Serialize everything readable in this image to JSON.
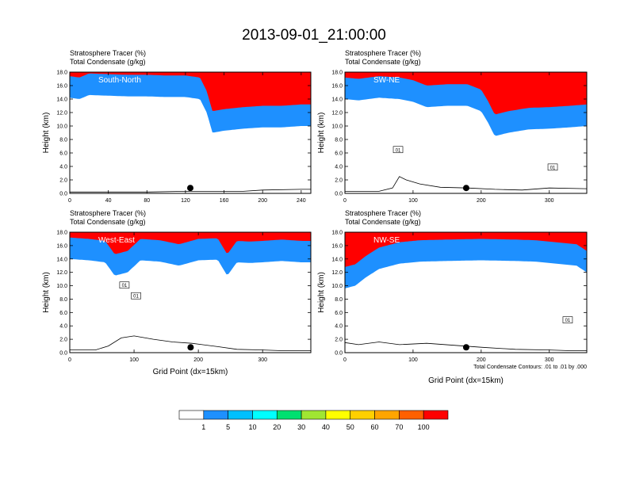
{
  "title": "2013-09-01_21:00:00",
  "chart_data": [
    {
      "type": "heatmap",
      "label": "South-North",
      "subtitle1": "Stratosphere Tracer   (%)",
      "subtitle2": "Total Condensate   (g/kg)",
      "ylabel": "Height (km)",
      "xlabel": "",
      "xlim": [
        0,
        250
      ],
      "ylim": [
        0,
        18
      ],
      "xticks": [
        "0",
        "40",
        "80",
        "120",
        "160",
        "200",
        "240"
      ],
      "xtick_values": [
        0,
        40,
        80,
        120,
        160,
        200,
        240
      ],
      "yticks": [
        "0.0",
        "2.0",
        "4.0",
        "6.0",
        "8.0",
        "10.0",
        "12.0",
        "14.0",
        "16.0",
        "18.0"
      ],
      "tropopause_x": [
        0,
        10,
        20,
        40,
        60,
        80,
        100,
        120,
        135,
        142,
        148,
        160,
        180,
        200,
        220,
        240,
        250
      ],
      "tropopause_y": [
        14.2,
        14.0,
        14.6,
        14.5,
        14.4,
        14.4,
        14.3,
        14.3,
        14.0,
        12.0,
        9.0,
        9.3,
        9.6,
        9.8,
        9.8,
        10.0,
        10.0
      ],
      "terrain_x": [
        0,
        40,
        80,
        120,
        180,
        200,
        240,
        250
      ],
      "terrain_y": [
        0.2,
        0.2,
        0.2,
        0.3,
        0.3,
        0.5,
        0.6,
        0.6
      ],
      "marker_x": 125,
      "marker_y": 0.8
    },
    {
      "type": "heatmap",
      "label": "SW-NE",
      "subtitle1": "Stratosphere Tracer   (%)",
      "subtitle2": "Total Condensate   (g/kg)",
      "ylabel": "Height (km)",
      "xlabel": "",
      "xlim": [
        0,
        355
      ],
      "ylim": [
        0,
        18
      ],
      "xticks": [
        "0",
        "100",
        "200",
        "300"
      ],
      "xtick_values": [
        0,
        100,
        200,
        300
      ],
      "yticks": [
        "0.0",
        "2.0",
        "4.0",
        "6.0",
        "8.0",
        "10.0",
        "12.0",
        "14.0",
        "16.0",
        "18.0"
      ],
      "tropopause_x": [
        0,
        20,
        50,
        80,
        100,
        120,
        150,
        180,
        200,
        210,
        220,
        240,
        270,
        300,
        330,
        355
      ],
      "tropopause_y": [
        14.0,
        13.8,
        14.2,
        14.0,
        13.6,
        12.8,
        13.0,
        13.0,
        12.2,
        10.5,
        8.5,
        9.0,
        9.5,
        9.6,
        9.8,
        10.0
      ],
      "terrain_x": [
        0,
        50,
        70,
        80,
        90,
        110,
        140,
        180,
        220,
        260,
        300,
        355
      ],
      "terrain_y": [
        0.3,
        0.3,
        0.8,
        2.5,
        2.0,
        1.4,
        0.9,
        0.8,
        0.6,
        0.5,
        0.8,
        0.7
      ],
      "marker_x": 178,
      "marker_y": 0.8,
      "contour_labels": [
        {
          "text": "01",
          "x": 78,
          "y": 6.5
        },
        {
          "text": "01",
          "x": 305,
          "y": 3.9
        }
      ]
    },
    {
      "type": "heatmap",
      "label": "West-East",
      "subtitle1": "Stratosphere Tracer   (%)",
      "subtitle2": "Total Condensate   (g/kg)",
      "ylabel": "Height (km)",
      "xlabel": "Grid Point (dx=15km)",
      "xlim": [
        0,
        375
      ],
      "ylim": [
        0,
        18
      ],
      "xticks": [
        "0",
        "100",
        "200",
        "300"
      ],
      "xtick_values": [
        0,
        100,
        200,
        300
      ],
      "yticks": [
        "0.0",
        "2.0",
        "4.0",
        "6.0",
        "8.0",
        "10.0",
        "12.0",
        "14.0",
        "16.0",
        "18.0"
      ],
      "tropopause_x": [
        0,
        30,
        55,
        70,
        90,
        110,
        140,
        170,
        200,
        230,
        245,
        260,
        280,
        300,
        330,
        360,
        375
      ],
      "tropopause_y": [
        14.0,
        13.8,
        13.5,
        11.5,
        12.0,
        13.8,
        13.6,
        13.0,
        13.8,
        13.9,
        11.5,
        13.5,
        13.4,
        13.5,
        13.7,
        13.5,
        13.5
      ],
      "terrain_x": [
        0,
        40,
        60,
        80,
        100,
        130,
        160,
        190,
        230,
        260,
        300,
        330,
        375
      ],
      "terrain_y": [
        0.4,
        0.4,
        1.0,
        2.2,
        2.5,
        2.0,
        1.6,
        1.4,
        0.9,
        0.5,
        0.4,
        0.3,
        0.3
      ],
      "marker_x": 188,
      "marker_y": 0.8,
      "contour_labels": [
        {
          "text": "01",
          "x": 85,
          "y": 10.1
        },
        {
          "text": "01",
          "x": 103,
          "y": 8.5
        }
      ]
    },
    {
      "type": "heatmap",
      "label": "NW-SE",
      "subtitle1": "Stratosphere Tracer   (%)",
      "subtitle2": "Total Condensate   (g/kg)",
      "ylabel": "Height (km)",
      "xlabel": "Grid Point (dx=15km)",
      "xlim": [
        0,
        355
      ],
      "ylim": [
        0,
        18
      ],
      "xticks": [
        "0",
        "100",
        "200",
        "300"
      ],
      "xtick_values": [
        0,
        100,
        200,
        300
      ],
      "yticks": [
        "0.0",
        "2.0",
        "4.0",
        "6.0",
        "8.0",
        "10.0",
        "12.0",
        "14.0",
        "16.0",
        "18.0"
      ],
      "tropopause_x": [
        0,
        15,
        30,
        50,
        80,
        110,
        150,
        200,
        250,
        280,
        320,
        340,
        355
      ],
      "tropopause_y": [
        9.6,
        10.0,
        11.2,
        12.5,
        13.3,
        13.6,
        13.7,
        13.8,
        13.7,
        13.6,
        13.2,
        13.0,
        12.0
      ],
      "terrain_x": [
        0,
        20,
        50,
        80,
        120,
        160,
        200,
        250,
        300,
        330,
        355
      ],
      "terrain_y": [
        1.5,
        1.2,
        1.6,
        1.2,
        1.4,
        1.1,
        0.8,
        0.5,
        0.4,
        0.3,
        0.3
      ],
      "marker_x": 178,
      "marker_y": 0.8,
      "contour_labels": [
        {
          "text": "01",
          "x": 327,
          "y": 4.9
        }
      ],
      "footnote": "Total Condensate Contours: .01 to .01 by .000"
    }
  ],
  "colorbar": {
    "levels": [
      "1",
      "5",
      "10",
      "20",
      "30",
      "40",
      "50",
      "60",
      "70",
      "100"
    ],
    "colors": [
      "#ffffff",
      "#1e90ff",
      "#00c0ff",
      "#00ffff",
      "#00e070",
      "#00ff00",
      "#a0e632",
      "#ffff00",
      "#ffd000",
      "#ffa500",
      "#ff6000",
      "#ff0000"
    ]
  }
}
